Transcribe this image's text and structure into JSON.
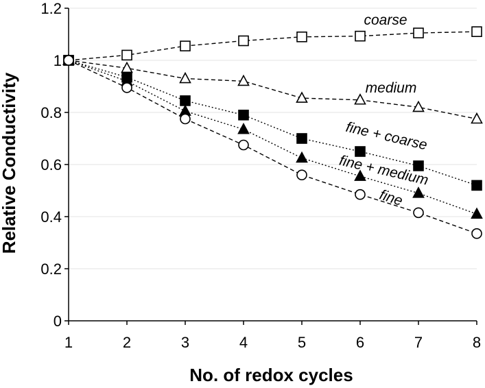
{
  "chart_data": {
    "type": "line",
    "title": "",
    "xlabel": "No. of redox cycles",
    "ylabel": "Relative Conductivity",
    "x": [
      1,
      2,
      3,
      4,
      5,
      6,
      7,
      8
    ],
    "xlim": [
      1,
      8
    ],
    "ylim": [
      0,
      1.2
    ],
    "xticks": [
      "1",
      "2",
      "3",
      "4",
      "5",
      "6",
      "7",
      "8"
    ],
    "yticks": [
      "0",
      "0.2",
      "0.4",
      "0.6",
      "0.8",
      "1",
      "1.2"
    ],
    "grid": "horizontal",
    "legend": "none (series labeled inline)",
    "series": [
      {
        "name": "coarse",
        "marker": "open-square",
        "line": "dashed",
        "values": [
          1.0,
          1.02,
          1.055,
          1.075,
          1.09,
          1.093,
          1.105,
          1.11
        ]
      },
      {
        "name": "medium",
        "marker": "open-triangle",
        "line": "dashed",
        "values": [
          1.0,
          0.97,
          0.93,
          0.92,
          0.855,
          0.848,
          0.82,
          0.775
        ]
      },
      {
        "name": "fine + coarse",
        "marker": "filled-square",
        "line": "dotted",
        "values": [
          1.0,
          0.935,
          0.845,
          0.79,
          0.7,
          0.65,
          0.595,
          0.52
        ]
      },
      {
        "name": "fine + medium",
        "marker": "filled-triangle",
        "line": "dotted",
        "values": [
          1.0,
          0.92,
          0.805,
          0.735,
          0.625,
          0.555,
          0.49,
          0.41
        ]
      },
      {
        "name": "fine",
        "marker": "open-circle",
        "line": "dashed",
        "values": [
          1.0,
          0.895,
          0.775,
          0.675,
          0.56,
          0.485,
          0.415,
          0.335
        ]
      }
    ]
  }
}
